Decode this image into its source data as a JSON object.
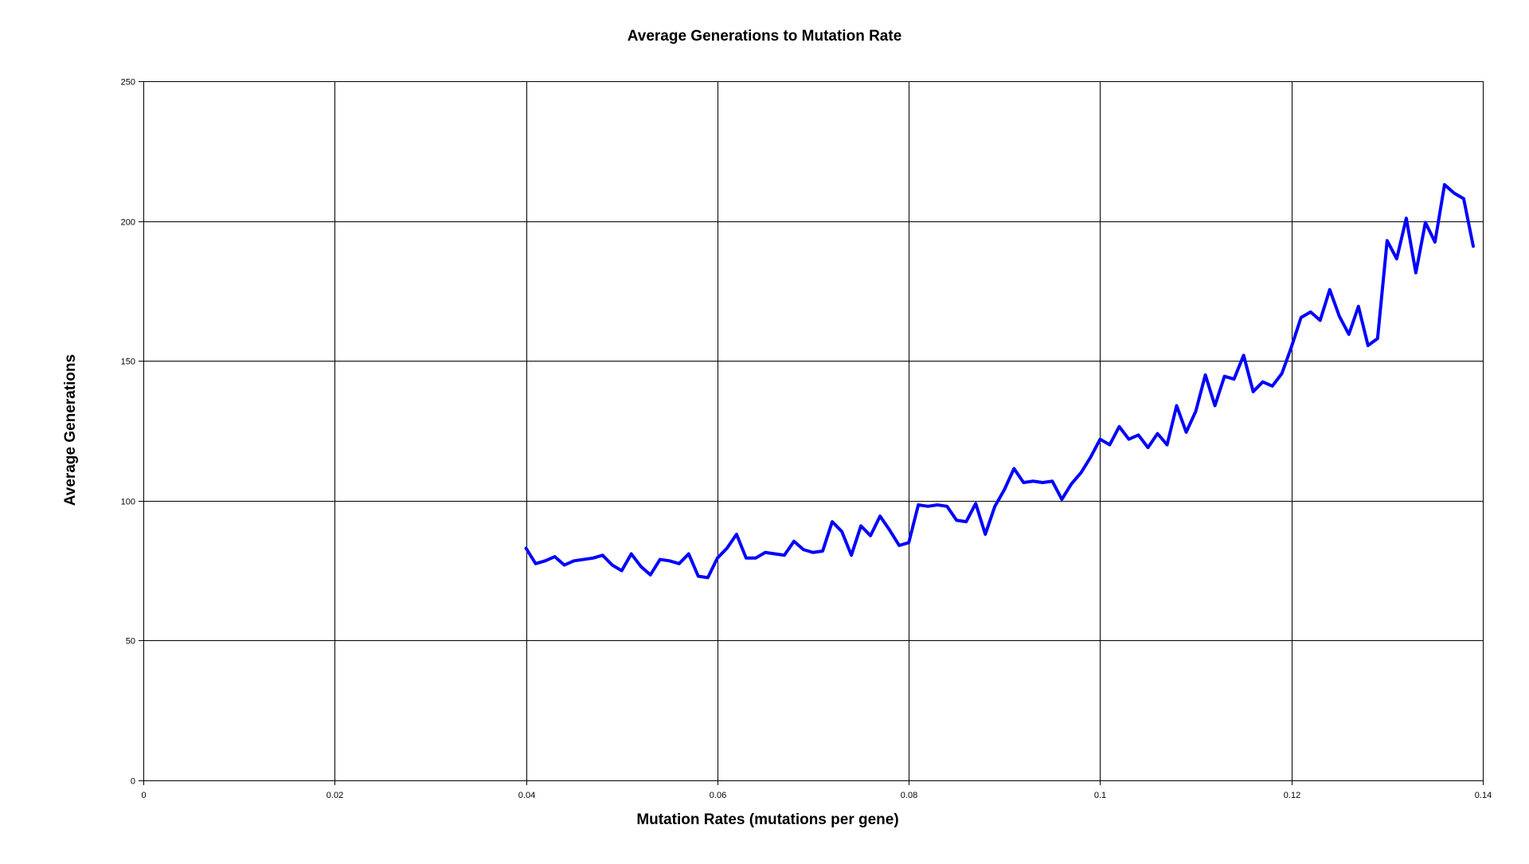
{
  "chart_data": {
    "type": "line",
    "title": "Average Generations to Mutation Rate",
    "xlabel": "Mutation Rates (mutations per gene)",
    "ylabel": "Average Generations",
    "xlim": [
      0,
      0.14
    ],
    "ylim": [
      0,
      250
    ],
    "x_ticks": [
      0,
      0.02,
      0.04,
      0.06,
      0.08,
      0.1,
      0.12,
      0.14
    ],
    "x_tick_labels": [
      "0",
      "0.02",
      "0.04",
      "0.06",
      "0.08",
      "0.1",
      "0.12",
      "0.14"
    ],
    "y_ticks": [
      0,
      50,
      100,
      150,
      200,
      250
    ],
    "y_tick_labels": [
      "0",
      "50",
      "100",
      "150",
      "200",
      "250"
    ],
    "grid": true,
    "series_color": "#0000ff",
    "series": [
      {
        "x": [
          0.04,
          0.041,
          0.042,
          0.043,
          0.044,
          0.045,
          0.046,
          0.047,
          0.048,
          0.049,
          0.05,
          0.051,
          0.052,
          0.053,
          0.054,
          0.055,
          0.056,
          0.057,
          0.058,
          0.059,
          0.06,
          0.061,
          0.062,
          0.063,
          0.064,
          0.065,
          0.066,
          0.067,
          0.068,
          0.069,
          0.07,
          0.071,
          0.072,
          0.073,
          0.074,
          0.075,
          0.076,
          0.077,
          0.078,
          0.079,
          0.08,
          0.081,
          0.082,
          0.083,
          0.084,
          0.085,
          0.086,
          0.087,
          0.088,
          0.089,
          0.09,
          0.091,
          0.092,
          0.093,
          0.094,
          0.095,
          0.096,
          0.097,
          0.098,
          0.099,
          0.1,
          0.101,
          0.102,
          0.103,
          0.104,
          0.105,
          0.106,
          0.107,
          0.108,
          0.109,
          0.11,
          0.111,
          0.112,
          0.113,
          0.114,
          0.115,
          0.116,
          0.117,
          0.118,
          0.119,
          0.12,
          0.121,
          0.122,
          0.123,
          0.124,
          0.125,
          0.126,
          0.127,
          0.128,
          0.129,
          0.13,
          0.131,
          0.132,
          0.133,
          0.134,
          0.135,
          0.136,
          0.137,
          0.138,
          0.139
        ],
        "values": [
          83,
          77.5,
          78.5,
          80,
          77,
          78.5,
          79,
          79.5,
          80.5,
          77,
          75,
          81,
          76.5,
          73.5,
          79,
          78.5,
          77.5,
          81,
          73,
          72.5,
          79.5,
          83,
          88,
          79.5,
          79.5,
          81.5,
          81,
          80.5,
          85.5,
          82.5,
          81.5,
          82,
          92.5,
          89,
          80.5,
          91,
          87.5,
          94.5,
          89.5,
          84,
          85,
          98.5,
          98,
          98.5,
          98,
          93,
          92.5,
          99,
          88,
          98,
          104,
          111.5,
          106.5,
          107,
          106.5,
          107,
          100.5,
          106,
          110,
          115.5,
          122,
          120,
          126.5,
          122,
          123.5,
          119,
          124,
          120,
          134,
          124.5,
          132,
          145,
          134,
          144.5,
          143.5,
          152,
          139,
          142.5,
          141,
          145.5,
          155,
          165.5,
          167.5,
          164.5,
          175.5,
          166,
          159.5,
          169.5,
          155.5,
          158,
          193,
          186.5,
          201,
          181.5,
          199.5,
          192.5,
          213,
          210,
          208,
          191
        ]
      }
    ]
  }
}
